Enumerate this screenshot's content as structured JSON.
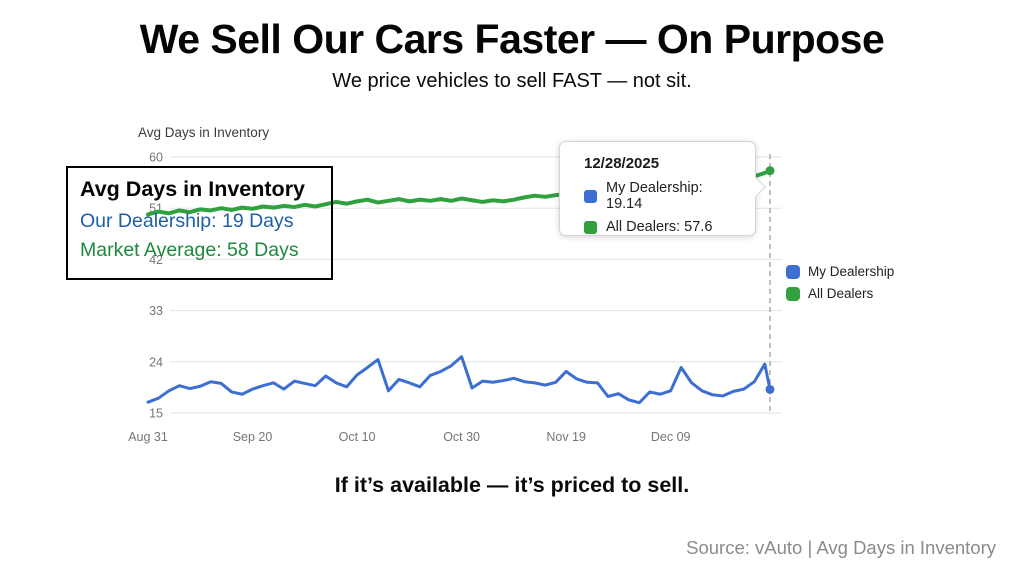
{
  "page": {
    "title": "We Sell Our Cars Faster — On Purpose",
    "subtitle": "We price vehicles to sell FAST — not sit.",
    "tagline": "If it’s available — it’s priced to sell.",
    "source": "Source: vAuto | Avg Days in Inventory"
  },
  "annotation": {
    "title": "Avg Days in Inventory",
    "our_dealership": "Our Dealership: 19 Days",
    "market_average": "Market Average: 58 Days",
    "our_dealership_color": "#1f5fa7",
    "market_average_color": "#1d8a3d"
  },
  "tooltip": {
    "date": "12/28/2025",
    "rows": [
      {
        "label": "My Dealership: 19.14",
        "color": "#3d6fd3"
      },
      {
        "label": "All Dealers: 57.6",
        "color": "#31a13f"
      }
    ]
  },
  "legend": [
    {
      "label": "My Dealership",
      "color": "#3d6fd3"
    },
    {
      "label": "All Dealers",
      "color": "#31a13f"
    }
  ],
  "chart_data": {
    "type": "line",
    "title": "Avg Days in Inventory",
    "xlabel": "",
    "ylabel": "",
    "ylim": [
      15,
      60
    ],
    "y_ticks": [
      15,
      24,
      33,
      42,
      51,
      60
    ],
    "x_tick_labels": [
      "Aug 31",
      "Sep 20",
      "Oct 10",
      "Oct 30",
      "Nov 19",
      "Dec 09"
    ],
    "x_tick_days": [
      0,
      20,
      40,
      60,
      80,
      100
    ],
    "x_range_days": [
      0,
      119
    ],
    "hover_day": 119,
    "hover_date": "12/28/2025",
    "grid": true,
    "legend_position": "right",
    "grid_color": "#e3e3e3",
    "tick_color": "#757575",
    "crosshair_color": "#ababab",
    "days": [
      0,
      2,
      4,
      6,
      8,
      10,
      12,
      14,
      16,
      18,
      20,
      22,
      24,
      26,
      28,
      30,
      32,
      34,
      36,
      38,
      40,
      42,
      44,
      46,
      48,
      50,
      52,
      54,
      56,
      58,
      60,
      62,
      64,
      66,
      68,
      70,
      72,
      74,
      76,
      78,
      80,
      82,
      84,
      86,
      88,
      90,
      92,
      94,
      96,
      98,
      100,
      102,
      104,
      106,
      108,
      110,
      112,
      114,
      116,
      118,
      119
    ],
    "series": [
      {
        "name": "My Dealership",
        "color": "#3d6fd3",
        "stroke_width": 3,
        "end_value": 19.14,
        "values": [
          16.9,
          17.6,
          18.9,
          19.8,
          19.3,
          19.7,
          20.5,
          20.2,
          18.7,
          18.3,
          19.2,
          19.8,
          20.3,
          19.2,
          20.6,
          20.2,
          19.8,
          21.5,
          20.3,
          19.6,
          21.7,
          23.0,
          24.4,
          18.9,
          20.9,
          20.3,
          19.6,
          21.6,
          22.3,
          23.3,
          24.9,
          19.4,
          20.6,
          20.4,
          20.7,
          21.1,
          20.5,
          20.3,
          19.9,
          20.4,
          22.3,
          21.0,
          20.4,
          20.3,
          17.9,
          18.4,
          17.3,
          16.8,
          18.7,
          18.3,
          18.9,
          23.0,
          20.3,
          18.9,
          18.2,
          18.0,
          18.8,
          19.2,
          20.5,
          23.6,
          19.14
        ]
      },
      {
        "name": "All Dealers",
        "color": "#31a13f",
        "stroke_width": 4,
        "end_value": 57.6,
        "values": [
          49.9,
          50.4,
          50.1,
          50.6,
          50.3,
          50.8,
          50.6,
          51.0,
          50.7,
          51.1,
          50.9,
          51.3,
          51.1,
          51.4,
          51.2,
          51.6,
          51.3,
          51.7,
          52.1,
          51.8,
          52.2,
          52.5,
          52.0,
          52.3,
          52.6,
          52.2,
          52.5,
          52.3,
          52.6,
          52.3,
          52.7,
          52.4,
          52.1,
          52.4,
          52.2,
          52.5,
          52.9,
          53.2,
          53.0,
          53.3,
          53.5,
          53.3,
          53.6,
          53.8,
          54.0,
          53.9,
          54.2,
          54.4,
          54.3,
          54.6,
          54.8,
          55.0,
          54.9,
          55.2,
          55.5,
          55.7,
          55.9,
          56.2,
          56.6,
          57.2,
          57.6
        ]
      }
    ]
  }
}
